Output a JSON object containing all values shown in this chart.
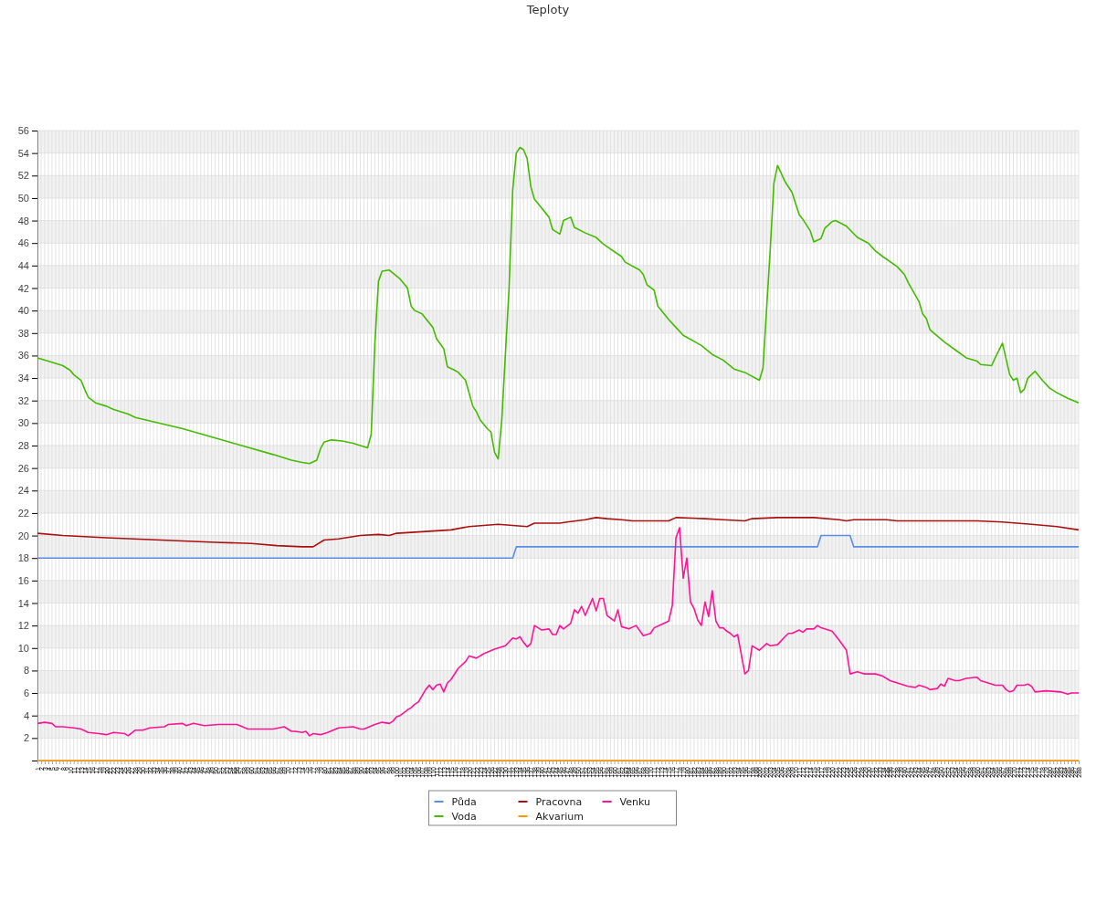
{
  "chart_data": {
    "type": "line",
    "title": "Teploty",
    "xlim": [
      1,
      288
    ],
    "xticks": [
      1,
      2,
      3,
      4,
      5,
      6,
      7,
      8,
      9,
      10,
      11,
      12,
      13,
      14,
      15,
      16,
      17,
      18,
      19,
      20,
      21,
      22,
      23,
      24,
      25,
      26,
      27,
      28,
      29,
      30,
      31,
      32,
      33,
      34,
      35,
      36,
      37,
      38,
      39,
      40,
      41,
      42,
      43,
      44,
      45,
      46,
      47,
      48,
      49,
      50,
      51,
      52,
      53,
      54,
      55,
      56,
      57,
      58,
      59,
      60,
      61,
      62,
      63,
      64,
      65,
      66,
      67,
      68,
      69,
      70,
      71,
      72,
      73,
      74,
      75,
      76,
      77,
      78,
      79,
      80,
      81,
      82,
      83,
      84,
      85,
      86,
      87,
      88,
      89,
      90,
      91,
      92,
      93,
      94,
      95,
      96,
      97,
      98,
      99,
      100,
      101,
      102,
      103,
      104,
      105,
      106,
      107,
      108,
      109,
      110,
      111,
      112,
      113,
      114,
      115,
      116,
      117,
      118,
      119,
      120,
      121,
      122,
      123,
      124,
      125,
      126,
      127,
      128,
      129,
      130,
      131,
      132,
      133,
      134,
      135,
      136,
      137,
      138,
      139,
      140,
      141,
      142,
      143,
      144,
      145,
      146,
      147,
      148,
      149,
      150,
      151,
      152,
      153,
      154,
      155,
      156,
      157,
      158,
      159,
      160,
      161,
      162,
      163,
      164,
      165,
      166,
      167,
      168,
      169,
      170,
      171,
      172,
      173,
      174,
      175,
      176,
      177,
      178,
      179,
      180,
      181,
      182,
      183,
      184,
      185,
      186,
      187,
      188,
      189,
      190,
      191,
      192,
      193,
      194,
      195,
      196,
      197,
      198,
      199,
      200,
      201,
      202,
      203,
      204,
      205,
      206,
      207,
      208,
      209,
      210,
      211,
      212,
      213,
      214,
      215,
      216,
      217,
      218,
      219,
      220,
      221,
      222,
      223,
      224,
      225,
      226,
      227,
      228,
      229,
      230,
      231,
      232,
      233,
      234,
      235,
      236,
      237,
      238,
      239,
      240,
      241,
      242,
      243,
      244,
      245,
      246,
      247,
      248,
      249,
      250,
      251,
      252,
      253,
      254,
      255,
      256,
      257,
      258,
      259,
      260,
      261,
      262,
      263,
      264,
      265,
      266,
      267,
      268,
      269,
      270,
      271,
      272,
      273,
      274,
      275,
      276,
      277,
      278,
      279,
      280,
      281,
      282,
      283,
      284,
      285,
      286,
      287,
      288
    ],
    "ylim": [
      0,
      56
    ],
    "yticks": [
      {
        "value": 0,
        "label": null
      },
      2,
      4,
      6,
      8,
      10,
      12,
      14,
      16,
      18,
      20,
      22,
      24,
      26,
      28,
      30,
      32,
      34,
      36,
      38,
      40,
      42,
      44,
      46,
      48,
      50,
      52,
      54,
      56
    ],
    "grid": true,
    "legend": "bottom",
    "series": [
      {
        "name": "Půda",
        "color": "#5b8fe6",
        "x": [
          1,
          132,
          133,
          216,
          217,
          225,
          226,
          288
        ],
        "values": [
          18,
          18,
          19,
          19,
          20,
          20,
          19,
          19
        ]
      },
      {
        "name": "Voda",
        "color": "#44bb00",
        "x": [
          1,
          6,
          8,
          10,
          11,
          13,
          14,
          15,
          17,
          20,
          22,
          26,
          28,
          41,
          54,
          66,
          71,
          74,
          76,
          78,
          79,
          80,
          82,
          85,
          88,
          91,
          92,
          93,
          94,
          95,
          96,
          98,
          101,
          103,
          104,
          105,
          107,
          110,
          111,
          113,
          114,
          116,
          117,
          119,
          121,
          122,
          123,
          125,
          126,
          127,
          128,
          129,
          131,
          132,
          133,
          134,
          135,
          136,
          137,
          138,
          139,
          142,
          143,
          145,
          146,
          148,
          149,
          152,
          155,
          157,
          162,
          163,
          167,
          168,
          169,
          171,
          172,
          175,
          177,
          179,
          184,
          187,
          190,
          193,
          196,
          200,
          201,
          203,
          204,
          205,
          207,
          209,
          211,
          212,
          214,
          215,
          217,
          218,
          220,
          221,
          224,
          227,
          230,
          232,
          234,
          238,
          240,
          241,
          244,
          245,
          246,
          247,
          251,
          254,
          257,
          260,
          261,
          264,
          265,
          267,
          268,
          269,
          270,
          271,
          272,
          273,
          274,
          276,
          278,
          280,
          282,
          285,
          288
        ],
        "values": [
          35.8,
          35.3,
          35.1,
          34.7,
          34.3,
          33.8,
          33,
          32.3,
          31.8,
          31.5,
          31.2,
          30.8,
          30.5,
          29.5,
          28.3,
          27.2,
          26.7,
          26.5,
          26.4,
          26.7,
          27.7,
          28.3,
          28.5,
          28.4,
          28.2,
          27.9,
          27.8,
          29,
          37,
          42.6,
          43.5,
          43.6,
          42.8,
          42,
          40.4,
          40,
          39.7,
          38.5,
          37.5,
          36.6,
          35,
          34.7,
          34.5,
          33.8,
          31.5,
          31,
          30.3,
          29.5,
          29.2,
          27.4,
          26.8,
          30.3,
          42,
          50.7,
          54,
          54.5,
          54.3,
          53.5,
          51,
          49.9,
          49.5,
          48.3,
          47.2,
          46.8,
          48,
          48.3,
          47.4,
          46.9,
          46.5,
          45.9,
          44.8,
          44.3,
          43.6,
          43.2,
          42.3,
          41.8,
          40.4,
          39.2,
          38.5,
          37.8,
          36.9,
          36.1,
          35.6,
          34.8,
          34.5,
          33.8,
          34.9,
          45.5,
          51.3,
          52.9,
          51.5,
          50.5,
          48.5,
          48.1,
          47.1,
          46.1,
          46.4,
          47.3,
          47.9,
          48,
          47.5,
          46.5,
          46,
          45.3,
          44.8,
          43.9,
          43.2,
          42.5,
          40.8,
          39.7,
          39.3,
          38.3,
          37.2,
          36.5,
          35.8,
          35.5,
          35.2,
          35.1,
          35.8,
          37.1,
          35.7,
          34.3,
          33.8,
          34,
          32.7,
          33,
          34,
          34.6,
          33.8,
          33.1,
          32.7,
          32.2,
          31.8
        ]
      },
      {
        "name": "Pracovna",
        "color": "#aa1111",
        "x": [
          1,
          8,
          20,
          35,
          50,
          60,
          67,
          74,
          77,
          80,
          84,
          90,
          95,
          98,
          100,
          105,
          110,
          115,
          120,
          128,
          136,
          138,
          145,
          147,
          152,
          155,
          158,
          162,
          165,
          175,
          177,
          185,
          190,
          196,
          198,
          205,
          215,
          222,
          224,
          226,
          235,
          238,
          260,
          267,
          275,
          282,
          288
        ],
        "values": [
          20.2,
          20,
          19.8,
          19.6,
          19.4,
          19.3,
          19.1,
          19,
          19,
          19.6,
          19.7,
          20,
          20.1,
          20,
          20.2,
          20.3,
          20.4,
          20.5,
          20.8,
          21,
          20.8,
          21.1,
          21.1,
          21.2,
          21.4,
          21.6,
          21.5,
          21.4,
          21.3,
          21.3,
          21.6,
          21.5,
          21.4,
          21.3,
          21.5,
          21.6,
          21.6,
          21.4,
          21.3,
          21.4,
          21.4,
          21.3,
          21.3,
          21.2,
          21,
          20.8,
          20.5
        ]
      },
      {
        "name": "Akvarium",
        "color": "#ff9900",
        "x": [
          1,
          288
        ],
        "values": [
          0,
          0
        ]
      },
      {
        "name": "Venku",
        "color": "#ff1493",
        "x": [
          1,
          3,
          5,
          6,
          8,
          11,
          13,
          15,
          18,
          20,
          22,
          25,
          26,
          28,
          30,
          32,
          36,
          37,
          41,
          42,
          44,
          47,
          51,
          56,
          59,
          62,
          66,
          69,
          71,
          72,
          74,
          75,
          76,
          77,
          79,
          81,
          84,
          88,
          90,
          91,
          94,
          96,
          98,
          99,
          100,
          101,
          103,
          104,
          105,
          106,
          108,
          109,
          110,
          111,
          112,
          113,
          114,
          115,
          117,
          119,
          120,
          122,
          124,
          127,
          129,
          130,
          132,
          133,
          134,
          135,
          136,
          137,
          138,
          139,
          140,
          142,
          143,
          144,
          145,
          146,
          148,
          149,
          150,
          151,
          152,
          154,
          155,
          156,
          157,
          158,
          160,
          161,
          162,
          164,
          166,
          168,
          170,
          171,
          173,
          175,
          176,
          177,
          178,
          179,
          180,
          181,
          182,
          183,
          184,
          185,
          186,
          187,
          188,
          189,
          190,
          191,
          192,
          193,
          194,
          196,
          197,
          198,
          200,
          202,
          203,
          205,
          207,
          208,
          209,
          211,
          212,
          213,
          215,
          216,
          217,
          219,
          220,
          222,
          224,
          225,
          227,
          228,
          229,
          232,
          234,
          236,
          239,
          241,
          243,
          244,
          246,
          247,
          249,
          250,
          251,
          252,
          254,
          255,
          257,
          260,
          261,
          262,
          265,
          267,
          268,
          269,
          270,
          271,
          273,
          274,
          275,
          276,
          279,
          283,
          284,
          285,
          286,
          288
        ],
        "values": [
          3.3,
          3.4,
          3.3,
          3,
          3,
          2.9,
          2.8,
          2.5,
          2.4,
          2.3,
          2.5,
          2.4,
          2.2,
          2.7,
          2.7,
          2.9,
          3,
          3.2,
          3.3,
          3.1,
          3.3,
          3.1,
          3.2,
          3.2,
          2.8,
          2.8,
          2.8,
          3,
          2.6,
          2.6,
          2.5,
          2.6,
          2.2,
          2.4,
          2.3,
          2.5,
          2.9,
          3,
          2.8,
          2.8,
          3.2,
          3.4,
          3.3,
          3.5,
          3.9,
          4,
          4.5,
          4.7,
          5,
          5.2,
          6.3,
          6.7,
          6.3,
          6.7,
          6.8,
          6.1,
          6.9,
          7.2,
          8.2,
          8.8,
          9.3,
          9.1,
          9.5,
          9.9,
          10.1,
          10.2,
          10.9,
          10.8,
          11,
          10.5,
          10.1,
          10.4,
          12,
          11.8,
          11.6,
          11.7,
          11.2,
          11.2,
          12,
          11.7,
          12.2,
          13.4,
          13.1,
          13.7,
          12.9,
          14.4,
          13.3,
          14.4,
          14.4,
          12.9,
          12.4,
          13.4,
          11.9,
          11.7,
          12,
          11.1,
          11.3,
          11.8,
          12.1,
          12.4,
          13.8,
          19.8,
          20.7,
          16.2,
          18,
          14.1,
          13.5,
          12.5,
          12,
          14.1,
          12.8,
          15.1,
          12.4,
          11.8,
          11.8,
          11.5,
          11.3,
          11,
          11.2,
          7.7,
          8,
          10.2,
          9.8,
          10.4,
          10.2,
          10.3,
          11,
          11.3,
          11.3,
          11.6,
          11.4,
          11.7,
          11.7,
          12,
          11.8,
          11.6,
          11.5,
          10.7,
          9.8,
          7.7,
          7.9,
          7.8,
          7.7,
          7.7,
          7.5,
          7.1,
          6.8,
          6.6,
          6.5,
          6.7,
          6.5,
          6.3,
          6.4,
          6.8,
          6.6,
          7.3,
          7.1,
          7.1,
          7.3,
          7.4,
          7.1,
          7,
          6.7,
          6.7,
          6.3,
          6.1,
          6.2,
          6.7,
          6.7,
          6.8,
          6.6,
          6.1,
          6.2,
          6.1,
          6,
          5.9,
          6,
          6
        ]
      }
    ]
  }
}
